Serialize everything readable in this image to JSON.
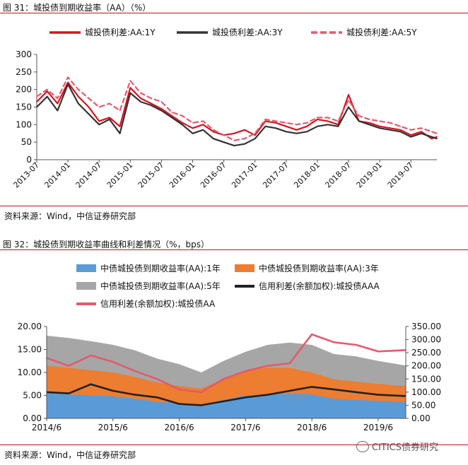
{
  "figure1": {
    "title": "图 31：城投债到期收益率（AA）（%）",
    "source": "资料来源：Wind，中信证券研究部",
    "chart_data": {
      "type": "line",
      "title": "",
      "xlabel": "",
      "ylabel": "",
      "ylim": [
        0,
        300
      ],
      "yticks": [
        0,
        50,
        100,
        150,
        200,
        250,
        300
      ],
      "xticks": [
        "2013-07",
        "2014-01",
        "2014-07",
        "2015-01",
        "2015-07",
        "2016-01",
        "2016-07",
        "2017-01",
        "2017-07",
        "2018-01",
        "2018-07",
        "2019-01",
        "2019-07"
      ],
      "x_range": [
        "2013-07",
        "2019-12"
      ],
      "legend_position": "top",
      "series": [
        {
          "name": "城投债利差:AA:1Y",
          "color": "#d7141e",
          "style": "solid",
          "x": [
            "2013-07",
            "2013-09",
            "2013-11",
            "2014-01",
            "2014-03",
            "2014-05",
            "2014-07",
            "2014-09",
            "2014-11",
            "2015-01",
            "2015-03",
            "2015-05",
            "2015-07",
            "2015-09",
            "2015-11",
            "2016-01",
            "2016-03",
            "2016-05",
            "2016-07",
            "2016-09",
            "2016-11",
            "2017-01",
            "2017-03",
            "2017-05",
            "2017-07",
            "2017-09",
            "2017-11",
            "2018-01",
            "2018-03",
            "2018-05",
            "2018-07",
            "2018-09",
            "2018-11",
            "2019-01",
            "2019-03",
            "2019-05",
            "2019-07",
            "2019-09",
            "2019-11",
            "2019-12"
          ],
          "values": [
            165,
            195,
            160,
            220,
            180,
            150,
            110,
            120,
            95,
            205,
            175,
            160,
            145,
            125,
            105,
            90,
            100,
            80,
            70,
            75,
            85,
            70,
            110,
            105,
            95,
            85,
            95,
            115,
            110,
            100,
            185,
            110,
            105,
            95,
            90,
            85,
            70,
            80,
            60,
            65
          ]
        },
        {
          "name": "城投债利差:AA:3Y",
          "color": "#333333",
          "style": "solid",
          "x": [
            "2013-07",
            "2013-09",
            "2013-11",
            "2014-01",
            "2014-03",
            "2014-05",
            "2014-07",
            "2014-09",
            "2014-11",
            "2015-01",
            "2015-03",
            "2015-05",
            "2015-07",
            "2015-09",
            "2015-11",
            "2016-01",
            "2016-03",
            "2016-05",
            "2016-07",
            "2016-09",
            "2016-11",
            "2017-01",
            "2017-03",
            "2017-05",
            "2017-07",
            "2017-09",
            "2017-11",
            "2018-01",
            "2018-03",
            "2018-05",
            "2018-07",
            "2018-09",
            "2018-11",
            "2019-01",
            "2019-03",
            "2019-05",
            "2019-07",
            "2019-09",
            "2019-11",
            "2019-12"
          ],
          "values": [
            150,
            180,
            140,
            215,
            160,
            130,
            100,
            115,
            75,
            190,
            165,
            155,
            140,
            120,
            100,
            75,
            85,
            60,
            50,
            40,
            45,
            60,
            95,
            90,
            80,
            75,
            80,
            95,
            100,
            95,
            150,
            110,
            100,
            90,
            85,
            80,
            65,
            75,
            65,
            60
          ]
        },
        {
          "name": "城投债利差:AA:5Y",
          "color": "#e35a6e",
          "style": "dashed",
          "x": [
            "2013-07",
            "2013-09",
            "2013-11",
            "2014-01",
            "2014-03",
            "2014-05",
            "2014-07",
            "2014-09",
            "2014-11",
            "2015-01",
            "2015-03",
            "2015-05",
            "2015-07",
            "2015-09",
            "2015-11",
            "2016-01",
            "2016-03",
            "2016-05",
            "2016-07",
            "2016-09",
            "2016-11",
            "2017-01",
            "2017-03",
            "2017-05",
            "2017-07",
            "2017-09",
            "2017-11",
            "2018-01",
            "2018-03",
            "2018-05",
            "2018-07",
            "2018-09",
            "2018-11",
            "2019-01",
            "2019-03",
            "2019-05",
            "2019-07",
            "2019-09",
            "2019-11",
            "2019-12"
          ],
          "values": [
            180,
            200,
            175,
            235,
            200,
            175,
            150,
            160,
            140,
            225,
            190,
            175,
            165,
            135,
            125,
            105,
            110,
            85,
            70,
            55,
            60,
            75,
            115,
            110,
            105,
            100,
            105,
            120,
            120,
            110,
            170,
            125,
            115,
            110,
            105,
            95,
            85,
            90,
            80,
            75
          ]
        }
      ]
    }
  },
  "figure2": {
    "title": "图 32：城投债到期收益率曲线和利差情况（%，bps）",
    "source": "资料来源：Wind，中信证券研究部",
    "watermark": "CITICS债券研究",
    "chart_data": {
      "type": "area",
      "title": "",
      "xlabel": "",
      "ylabel": "",
      "ylim": [
        0,
        20
      ],
      "yticks": [
        "0.00",
        "5.00",
        "10.00",
        "15.00",
        "20.00"
      ],
      "y2lim": [
        0,
        350
      ],
      "y2ticks": [
        "0.00",
        "50.00",
        "100.00",
        "150.00",
        "200.00",
        "250.00",
        "300.00",
        "350.00"
      ],
      "xticks": [
        "2014/6",
        "2015/6",
        "2016/6",
        "2017/6",
        "2018/6",
        "2019/6"
      ],
      "x_range": [
        "2014/6",
        "2019/11"
      ],
      "legend_position": "top",
      "series": [
        {
          "name": "中债城投债到期收益率(AA):5年",
          "type": "area",
          "axis": "left",
          "color": "#a6a6a6",
          "x": [
            "2014/6",
            "2014/10",
            "2015/2",
            "2015/6",
            "2015/10",
            "2016/2",
            "2016/6",
            "2016/10",
            "2017/2",
            "2017/6",
            "2017/10",
            "2018/2",
            "2018/6",
            "2018/10",
            "2019/2",
            "2019/6",
            "2019/11"
          ],
          "values": [
            18.0,
            17.5,
            16.8,
            16.0,
            14.8,
            13.0,
            11.8,
            10.0,
            12.5,
            14.5,
            16.0,
            16.5,
            16.0,
            14.0,
            13.5,
            12.5,
            11.5
          ]
        },
        {
          "name": "中债城投债到期收益率(AA):3年",
          "type": "area",
          "axis": "left",
          "color": "#ed7d31",
          "x": [
            "2014/6",
            "2014/10",
            "2015/2",
            "2015/6",
            "2015/10",
            "2016/2",
            "2016/6",
            "2016/10",
            "2017/2",
            "2017/6",
            "2017/10",
            "2018/2",
            "2018/6",
            "2018/10",
            "2019/2",
            "2019/6",
            "2019/11"
          ],
          "values": [
            11.5,
            11.0,
            10.5,
            10.0,
            9.0,
            7.8,
            7.0,
            6.5,
            8.5,
            10.5,
            11.0,
            11.0,
            10.0,
            8.5,
            8.0,
            7.5,
            7.0
          ]
        },
        {
          "name": "中债城投债到期收益率(AA):1年",
          "type": "area",
          "axis": "left",
          "color": "#5b9bd5",
          "x": [
            "2014/6",
            "2014/10",
            "2015/2",
            "2015/6",
            "2015/10",
            "2016/2",
            "2016/6",
            "2016/10",
            "2017/2",
            "2017/6",
            "2017/10",
            "2018/2",
            "2018/6",
            "2018/10",
            "2019/2",
            "2019/6",
            "2019/11"
          ],
          "values": [
            5.5,
            5.2,
            5.0,
            4.8,
            4.3,
            3.6,
            3.3,
            3.0,
            4.0,
            5.0,
            5.2,
            5.4,
            5.2,
            4.3,
            4.0,
            3.8,
            3.6
          ]
        },
        {
          "name": "信用利差(余额加权):城投债AAA",
          "type": "line",
          "axis": "right",
          "color": "#222222",
          "x": [
            "2014/6",
            "2014/10",
            "2015/2",
            "2015/6",
            "2015/10",
            "2016/2",
            "2016/6",
            "2016/10",
            "2017/2",
            "2017/6",
            "2017/10",
            "2018/2",
            "2018/6",
            "2018/10",
            "2019/2",
            "2019/6",
            "2019/11"
          ],
          "values": [
            100,
            95,
            130,
            105,
            90,
            80,
            55,
            50,
            65,
            80,
            90,
            105,
            120,
            110,
            100,
            90,
            85
          ]
        },
        {
          "name": "信用利差(余额加权):城投债AA",
          "type": "line",
          "axis": "right",
          "color": "#e35a6e",
          "x": [
            "2014/6",
            "2014/10",
            "2015/2",
            "2015/6",
            "2015/10",
            "2016/2",
            "2016/6",
            "2016/10",
            "2017/2",
            "2017/6",
            "2017/10",
            "2018/2",
            "2018/6",
            "2018/10",
            "2019/2",
            "2019/6",
            "2019/11"
          ],
          "values": [
            230,
            200,
            240,
            215,
            180,
            150,
            110,
            100,
            150,
            180,
            200,
            210,
            320,
            290,
            280,
            255,
            260
          ]
        }
      ]
    }
  }
}
